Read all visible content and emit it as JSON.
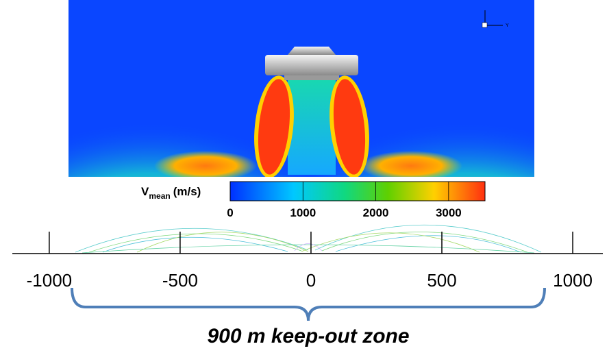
{
  "colorbar": {
    "symbol": "V",
    "subscript": "mean",
    "unit": "(m/s)",
    "range": [
      0,
      3500
    ],
    "ticks": [
      0,
      1000,
      2000,
      3000
    ]
  },
  "axis": {
    "xlim": [
      -1141,
      1115
    ],
    "ticks": [
      -1000,
      -500,
      0,
      500,
      1000
    ]
  },
  "orientation_label": "Y",
  "annotation": "900 m keep-out zone"
}
